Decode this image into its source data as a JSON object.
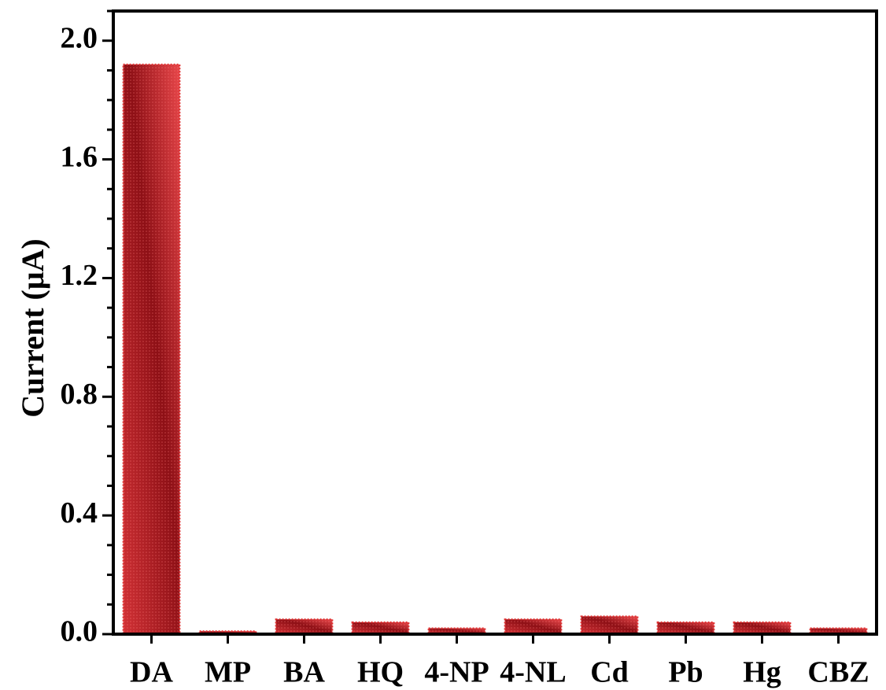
{
  "chart_data": {
    "type": "bar",
    "title": "",
    "xlabel": "",
    "ylabel": "Current (μA)",
    "ylim": [
      0,
      2.1
    ],
    "yticks": [
      0.0,
      0.4,
      0.8,
      1.2,
      1.6,
      2.0
    ],
    "ytick_labels": [
      "0.0",
      "0.4",
      "0.8",
      "1.2",
      "1.6",
      "2.0"
    ],
    "categories": [
      "DA",
      "MP",
      "BA",
      "HQ",
      "4-NP",
      "4-NL",
      "Cd",
      "Pb",
      "Hg",
      "CBZ"
    ],
    "values": [
      1.92,
      0.01,
      0.05,
      0.04,
      0.02,
      0.05,
      0.06,
      0.04,
      0.04,
      0.02
    ],
    "grid": false,
    "bar_color": "#c0282a",
    "bar_edge_color": "#e03030"
  }
}
